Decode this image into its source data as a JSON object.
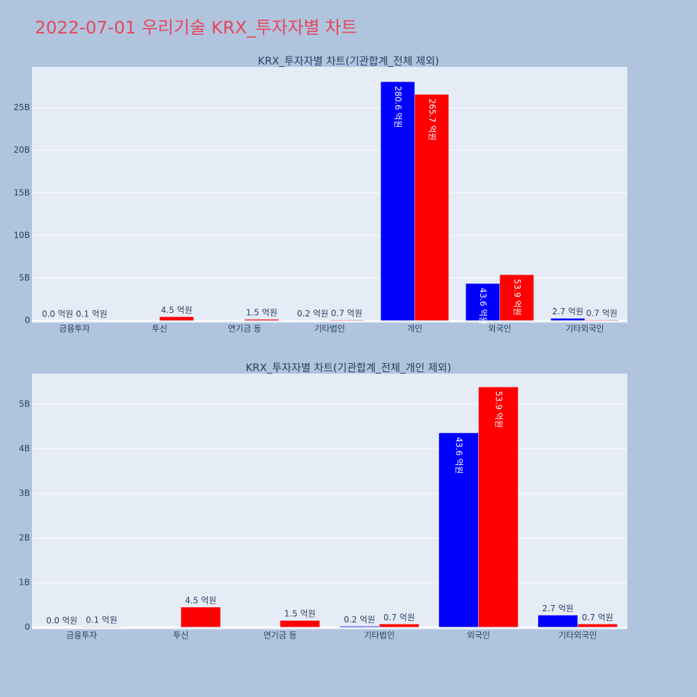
{
  "title": "2022-07-01 우리기술 KRX_투자자별 차트",
  "chart_data": [
    {
      "type": "bar",
      "title": "KRX_투자자별 차트(기관합계_전체 제외)",
      "categories": [
        "금융투자",
        "투신",
        "연기금 등",
        "기타법인",
        "개인",
        "외국인",
        "기타외국인"
      ],
      "series": [
        {
          "color": "#0000ff",
          "values": [
            0,
            null,
            null,
            20000000,
            28060000000,
            4360000000,
            270000000
          ],
          "value_labels": [
            "0.0 억원",
            null,
            null,
            "0.2 억원",
            "280.6 억원",
            "43.6 억원",
            "2.7 억원"
          ]
        },
        {
          "color": "#ff0000",
          "values": [
            10000000,
            450000000,
            150000000,
            70000000,
            26570000000,
            5390000000,
            70000000
          ],
          "value_labels": [
            "0.1 억원",
            "4.5 억원",
            "1.5 억원",
            "0.7 억원",
            "265.7 억원",
            "53.9 억원",
            "0.7 억원"
          ]
        }
      ],
      "ylim": [
        -250000000,
        29800000000
      ],
      "yticks": [
        0,
        {
          "value": 5000000000,
          "label": "5B"
        },
        {
          "value": 10000000000,
          "label": "10B"
        },
        {
          "value": 15000000000,
          "label": "15B"
        },
        {
          "value": 20000000000,
          "label": "20B"
        },
        {
          "value": 25000000000,
          "label": "25B"
        }
      ],
      "grid": true
    },
    {
      "type": "bar",
      "title": "KRX_투자자별 차트(기관합계_전체_개인 제외)",
      "categories": [
        "금융투자",
        "투신",
        "연기금 등",
        "기타법인",
        "외국인",
        "기타외국인"
      ],
      "series": [
        {
          "color": "#0000ff",
          "values": [
            0,
            null,
            null,
            20000000,
            4360000000,
            270000000
          ],
          "value_labels": [
            "0.0 억원",
            null,
            null,
            "0.2 억원",
            "43.6 억원",
            "2.7 억원"
          ]
        },
        {
          "color": "#ff0000",
          "values": [
            10000000,
            450000000,
            150000000,
            70000000,
            5390000000,
            70000000
          ],
          "value_labels": [
            "0.1 억원",
            "4.5 억원",
            "1.5 억원",
            "0.7 억원",
            "53.9 억원",
            "0.7 억원"
          ]
        }
      ],
      "ylim": [
        -50000000,
        5690000000
      ],
      "yticks": [
        0,
        {
          "value": 1000000000,
          "label": "1B"
        },
        {
          "value": 2000000000,
          "label": "2B"
        },
        {
          "value": 3000000000,
          "label": "3B"
        },
        {
          "value": 4000000000,
          "label": "4B"
        },
        {
          "value": 5000000000,
          "label": "5B"
        }
      ],
      "grid": true
    }
  ]
}
